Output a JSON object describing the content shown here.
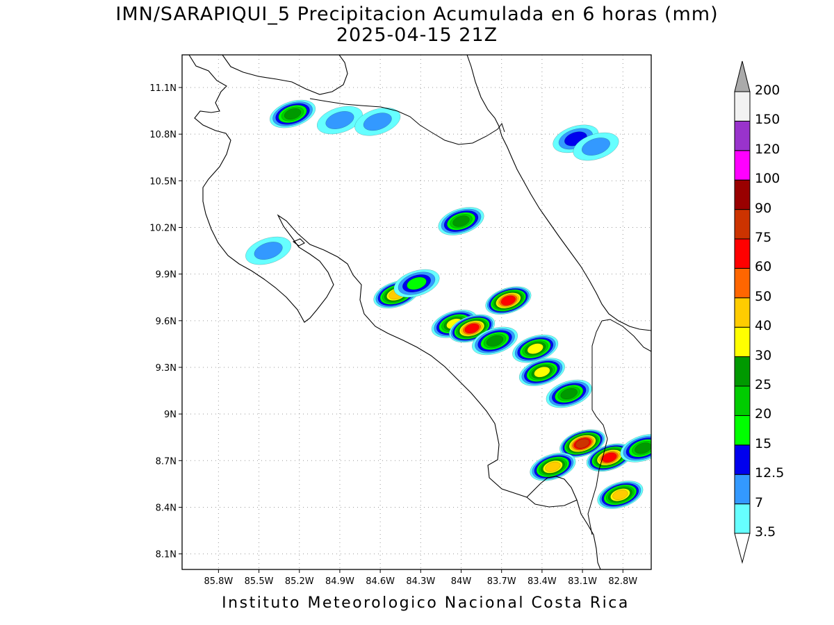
{
  "title": "IMN/SARAPIQUI_5 Precipitacion Acumulada en 6 horas (mm)",
  "subtitle": "2025-04-15 21Z",
  "footer": "Instituto Meteorologico Nacional Costa Rica",
  "map": {
    "lon_range": [
      -86.07,
      -82.59
    ],
    "lat_range": [
      8.0,
      11.31
    ],
    "lat_ticks": [
      {
        "value": 11.1,
        "label": "11.1N"
      },
      {
        "value": 10.8,
        "label": "10.8N"
      },
      {
        "value": 10.5,
        "label": "10.5N"
      },
      {
        "value": 10.2,
        "label": "10.2N"
      },
      {
        "value": 9.9,
        "label": "9.9N"
      },
      {
        "value": 9.6,
        "label": "9.6N"
      },
      {
        "value": 9.3,
        "label": "9.3N"
      },
      {
        "value": 9.0,
        "label": "9N"
      },
      {
        "value": 8.7,
        "label": "8.7N"
      },
      {
        "value": 8.4,
        "label": "8.4N"
      },
      {
        "value": 8.1,
        "label": "8.1N"
      }
    ],
    "lon_ticks": [
      {
        "value": -85.8,
        "label": "85.8W"
      },
      {
        "value": -85.5,
        "label": "85.5W"
      },
      {
        "value": -85.2,
        "label": "85.2W"
      },
      {
        "value": -84.9,
        "label": "84.9W"
      },
      {
        "value": -84.6,
        "label": "84.6W"
      },
      {
        "value": -84.3,
        "label": "84.3W"
      },
      {
        "value": -84.0,
        "label": "84W"
      },
      {
        "value": -83.7,
        "label": "83.7W"
      },
      {
        "value": -83.4,
        "label": "83.4W"
      },
      {
        "value": -83.1,
        "label": "83.1W"
      },
      {
        "value": -82.8,
        "label": "82.8W"
      }
    ],
    "grid": true
  },
  "colorbar": {
    "levels": [
      {
        "label": "3.5",
        "color": "#66ffff"
      },
      {
        "label": "7",
        "color": "#3399ff"
      },
      {
        "label": "12.5",
        "color": "#0000ee"
      },
      {
        "label": "15",
        "color": "#00ff00"
      },
      {
        "label": "20",
        "color": "#00cc00"
      },
      {
        "label": "25",
        "color": "#009900"
      },
      {
        "label": "30",
        "color": "#ffff00"
      },
      {
        "label": "40",
        "color": "#ffcc00"
      },
      {
        "label": "50",
        "color": "#ff6600"
      },
      {
        "label": "60",
        "color": "#ff0000"
      },
      {
        "label": "75",
        "color": "#cc3300"
      },
      {
        "label": "90",
        "color": "#990000"
      },
      {
        "label": "100",
        "color": "#ff00ff"
      },
      {
        "label": "120",
        "color": "#9933cc"
      },
      {
        "label": "150",
        "color": "#f2f2f2"
      },
      {
        "label": "200",
        "color": "#aaaaaa"
      }
    ],
    "under_color": "#ffffff",
    "over_color": "#aaaaaa"
  },
  "precip_cells": [
    {
      "lon": -85.25,
      "lat": 10.93,
      "max_mm": 25
    },
    {
      "lon": -84.9,
      "lat": 10.89,
      "max_mm": 7
    },
    {
      "lon": -84.62,
      "lat": 10.88,
      "max_mm": 7
    },
    {
      "lon": -83.15,
      "lat": 10.77,
      "max_mm": 12.5
    },
    {
      "lon": -83.0,
      "lat": 10.72,
      "max_mm": 7
    },
    {
      "lon": -84.0,
      "lat": 10.24,
      "max_mm": 25
    },
    {
      "lon": -85.43,
      "lat": 10.05,
      "max_mm": 7
    },
    {
      "lon": -84.48,
      "lat": 9.77,
      "max_mm": 40
    },
    {
      "lon": -84.33,
      "lat": 9.84,
      "max_mm": 15
    },
    {
      "lon": -83.65,
      "lat": 9.73,
      "max_mm": 60
    },
    {
      "lon": -84.05,
      "lat": 9.58,
      "max_mm": 30
    },
    {
      "lon": -83.92,
      "lat": 9.55,
      "max_mm": 60
    },
    {
      "lon": -83.75,
      "lat": 9.47,
      "max_mm": 25
    },
    {
      "lon": -83.45,
      "lat": 9.42,
      "max_mm": 30
    },
    {
      "lon": -83.4,
      "lat": 9.27,
      "max_mm": 30
    },
    {
      "lon": -83.2,
      "lat": 9.13,
      "max_mm": 25
    },
    {
      "lon": -83.1,
      "lat": 8.81,
      "max_mm": 75
    },
    {
      "lon": -82.9,
      "lat": 8.72,
      "max_mm": 60
    },
    {
      "lon": -83.32,
      "lat": 8.66,
      "max_mm": 40
    },
    {
      "lon": -82.82,
      "lat": 8.48,
      "max_mm": 40
    },
    {
      "lon": -82.65,
      "lat": 8.78,
      "max_mm": 25
    }
  ]
}
